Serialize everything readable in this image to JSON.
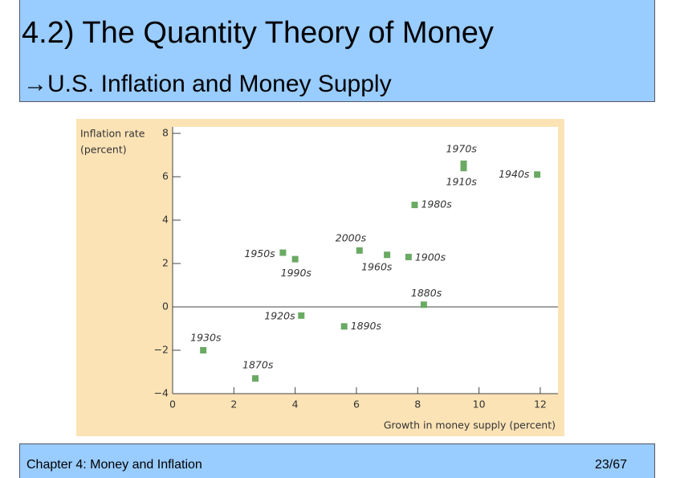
{
  "header": {
    "title": "4.2) The Quantity Theory of Money",
    "subtitle": "→U.S. Inflation and Money Supply"
  },
  "chart_data": {
    "type": "scatter",
    "ylabel": [
      "Inflation rate",
      "(percent)"
    ],
    "xlabel": "Growth in money supply (percent)",
    "labels": [
      "1970s",
      "1910s",
      "1940s",
      "1980s",
      "2000s",
      "1960s",
      "1900s",
      "1950s",
      "1990s",
      "1880s",
      "1920s",
      "1890s",
      "1930s",
      "1870s"
    ],
    "x": [
      9.5,
      9.5,
      11.9,
      7.9,
      6.1,
      7.0,
      7.7,
      3.6,
      4.0,
      8.2,
      4.2,
      5.6,
      1.0,
      2.7
    ],
    "values": [
      6.6,
      6.4,
      6.1,
      4.7,
      2.6,
      2.4,
      2.3,
      2.5,
      2.2,
      0.1,
      -0.4,
      -0.9,
      -2.0,
      -3.3
    ],
    "color": "#6aaa64",
    "xlim": [
      0,
      12.5
    ],
    "ylim": [
      -4,
      8
    ],
    "xticks": [
      0,
      2,
      4,
      6,
      8,
      10,
      12
    ],
    "yticks": [
      {
        "value": -4,
        "label": "−4"
      },
      {
        "value": -2,
        "label": "−2"
      },
      0,
      2,
      4,
      6,
      8
    ]
  },
  "footer": {
    "left": "Chapter 4: Money and Inflation",
    "right": "23/67"
  }
}
